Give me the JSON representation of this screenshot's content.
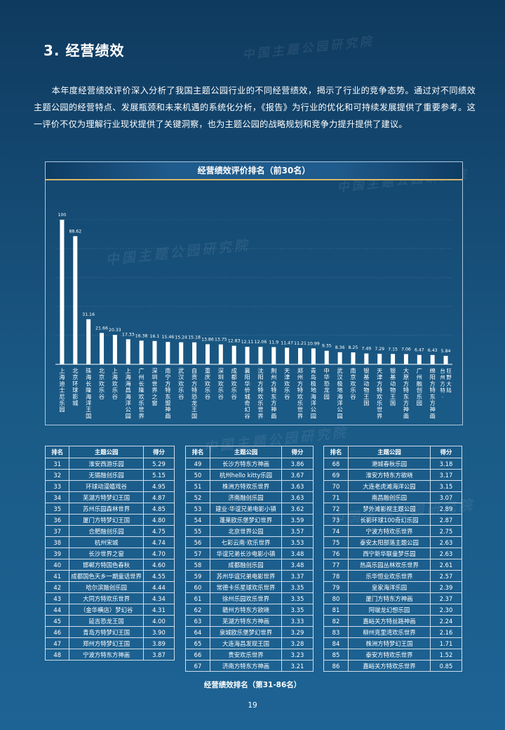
{
  "section": {
    "title": "3. 经营绩效"
  },
  "intro": "本年度经营绩效评价深入分析了我国主题公园行业的不同经营绩效，揭示了行业的竞争态势。通过对不同绩效主题公园的经营特点、发展瓶颈和未来机遇的系统化分析，《报告》为行业的优化和可持续发展提供了重要参考。这一评价不仅为理解行业现状提供了关键洞察，也为主题公园的战略规划和竞争力提升提供了建议。",
  "watermark": "中国主题公园研究院",
  "chart_data": {
    "type": "bar",
    "title": "经营绩效评价排名（前30名）",
    "categories": [
      "上海迪士尼乐园",
      "北京环球影城",
      "珠海长隆海洋王国",
      "北京欢乐谷",
      "上海欢乐谷",
      "上海海昌海洋公园",
      "广州长隆欢乐世界",
      "深圳世界之窗",
      "南宁方特东盟神画",
      "武汉欢乐谷",
      "自贡方特恐龙王国",
      "重庆欢乐谷",
      "深圳欢乐谷",
      "成都欢乐谷",
      "襄阳华侨城奇幻谷",
      "沈阳方特欢乐世界",
      "荆州方特东方神画",
      "天津欢乐谷",
      "郑州方特欢乐世界",
      "青岛极地海洋公园",
      "中华恐龙园",
      "武汉极地海洋公园",
      "南京欢乐谷",
      "银基动物王国",
      "天津方特欢乐世界",
      "银基动物王国",
      "大原方特东方神画",
      "广州融创乐园",
      "绵阳方特东方神画",
      "台州方特·狂野大陆"
    ],
    "values": [
      100,
      88.62,
      31.16,
      21.66,
      20.33,
      17.33,
      16.38,
      16.1,
      15.46,
      15.24,
      15.18,
      13.86,
      13.75,
      12.83,
      12.11,
      12.06,
      11.9,
      11.47,
      11.21,
      10.99,
      9.35,
      8.36,
      8.25,
      7.49,
      7.29,
      7.15,
      7.06,
      6.47,
      6.43,
      5.84
    ],
    "value_labels": [
      "100",
      "88.62",
      "31.16",
      "21.66",
      "20.33",
      "17.33",
      "16.38",
      "16.1",
      "15.46",
      "15.24",
      "15.18",
      "13.86",
      "13.75",
      "12.83",
      "12.11",
      "12.06",
      "11.9",
      "11.47",
      "11.21",
      "10.99",
      "9.35",
      "8.36",
      "8.25",
      "7.49",
      "7.29",
      "7.15",
      "7.06",
      "6.47",
      "6.43",
      "5.84"
    ],
    "ylim": [
      0,
      100
    ],
    "grid": true,
    "legend": "none"
  },
  "tables": {
    "headers": {
      "rank": "排名",
      "park": "主题公园",
      "score": "得分"
    },
    "caption": "经营绩效排名（第31-86名）",
    "columns": [
      [
        {
          "rank": "31",
          "park": "淮安西游乐园",
          "score": "5.29"
        },
        {
          "rank": "32",
          "park": "无锡融创乐园",
          "score": "5.15"
        },
        {
          "rank": "33",
          "park": "环球动漫嬉戏谷",
          "score": "4.95"
        },
        {
          "rank": "34",
          "park": "芜湖方特梦幻王国",
          "score": "4.87"
        },
        {
          "rank": "35",
          "park": "苏州乐园森林世界",
          "score": "4.85"
        },
        {
          "rank": "36",
          "park": "厦门方特梦幻王国",
          "score": "4.80"
        },
        {
          "rank": "37",
          "park": "合肥融创乐园",
          "score": "4.75"
        },
        {
          "rank": "38",
          "park": "杭州宋城",
          "score": "4.74"
        },
        {
          "rank": "39",
          "park": "长沙世界之窗",
          "score": "4.70"
        },
        {
          "rank": "40",
          "park": "邯郸方特国色春秋",
          "score": "4.60"
        },
        {
          "rank": "41",
          "park": "成都国色天乡一期童话世界",
          "score": "4.55"
        },
        {
          "rank": "42",
          "park": "哈尔滨融创乐园",
          "score": "4.44"
        },
        {
          "rank": "43",
          "park": "大同方特欢乐世界",
          "score": "4.34"
        },
        {
          "rank": "44",
          "park": "（金华横店）梦幻谷",
          "score": "4.31"
        },
        {
          "rank": "45",
          "park": "延吉恐龙王国",
          "score": "4.00"
        },
        {
          "rank": "46",
          "park": "青岛方特梦幻王国",
          "score": "3.90"
        },
        {
          "rank": "47",
          "park": "郑州方特梦幻王国",
          "score": "3.89"
        },
        {
          "rank": "48",
          "park": "宁波方特东方神画",
          "score": "3.87"
        }
      ],
      [
        {
          "rank": "49",
          "park": "长沙方特东方神画",
          "score": "3.86"
        },
        {
          "rank": "50",
          "park": "杭州hello kitty乐园",
          "score": "3.67"
        },
        {
          "rank": "51",
          "park": "株洲方特欢乐世界",
          "score": "3.63"
        },
        {
          "rank": "52",
          "park": "济南融创乐园",
          "score": "3.63"
        },
        {
          "rank": "53",
          "park": "建业·华谊兄弟电影小镇",
          "score": "3.62"
        },
        {
          "rank": "54",
          "park": "蓬莱欧乐堡梦幻世界",
          "score": "3.59"
        },
        {
          "rank": "55",
          "park": "北京世界公园",
          "score": "3.57"
        },
        {
          "rank": "56",
          "park": "七彩云南·欢乐世界",
          "score": "3.53"
        },
        {
          "rank": "57",
          "park": "华谊兄弟长沙电影小镇",
          "score": "3.48"
        },
        {
          "rank": "58",
          "park": "成都融创乐园",
          "score": "3.48"
        },
        {
          "rank": "59",
          "park": "苏州华谊兄弟电影世界",
          "score": "3.37"
        },
        {
          "rank": "60",
          "park": "常德卡乐星球欢乐世界",
          "score": "3.35"
        },
        {
          "rank": "61",
          "park": "徐州乐园欢乐世界",
          "score": "3.35"
        },
        {
          "rank": "62",
          "park": "赣州方特东方欲晓",
          "score": "3.35"
        },
        {
          "rank": "63",
          "park": "芜湖方特东方神画",
          "score": "3.33"
        },
        {
          "rank": "64",
          "park": "泉城欧乐堡梦幻世界",
          "score": "3.29"
        },
        {
          "rank": "65",
          "park": "大连海昌发现王国",
          "score": "3.28"
        },
        {
          "rank": "66",
          "park": "贵安欢乐世界",
          "score": "3.23"
        },
        {
          "rank": "67",
          "park": "济南方特东方神画",
          "score": "3.21"
        }
      ],
      [
        {
          "rank": "68",
          "park": "滟城春秋乐园",
          "score": "3.18"
        },
        {
          "rank": "69",
          "park": "淮安方特东方欲晓",
          "score": "3.17"
        },
        {
          "rank": "70",
          "park": "大连老虎滩海洋公园",
          "score": "3.15"
        },
        {
          "rank": "71",
          "park": "南昌融创乐园",
          "score": "3.07"
        },
        {
          "rank": "72",
          "park": "梦外滩影视主题公园",
          "score": "2.89"
        },
        {
          "rank": "73",
          "park": "长影环球100奇幻乐园",
          "score": "2.87"
        },
        {
          "rank": "74",
          "park": "宁波方特欢乐世界",
          "score": "2.75"
        },
        {
          "rank": "75",
          "park": "泰安太阳部落主题公园",
          "score": "2.63"
        },
        {
          "rank": "76",
          "park": "西宁新华联童梦乐园",
          "score": "2.63"
        },
        {
          "rank": "77",
          "park": "热高乐园丛林欢乐世界",
          "score": "2.61"
        },
        {
          "rank": "78",
          "park": "乐华恒业欢乐世界",
          "score": "2.57"
        },
        {
          "rank": "79",
          "park": "皇家海洋乐园",
          "score": "2.39"
        },
        {
          "rank": "80",
          "park": "厦门方特东方神画",
          "score": "2.37"
        },
        {
          "rank": "81",
          "park": "阿啵龙幻想乐园",
          "score": "2.30"
        },
        {
          "rank": "82",
          "park": "嘉峪关方特丝路神画",
          "score": "2.24"
        },
        {
          "rank": "83",
          "park": "柳州克里湾欢乐世界",
          "score": "2.16"
        },
        {
          "rank": "84",
          "park": "株洲方特梦幻王国",
          "score": "1.71"
        },
        {
          "rank": "85",
          "park": "泰安方特欢乐世界",
          "score": "1.52"
        },
        {
          "rank": "86",
          "park": "嘉峪关方特欢乐世界",
          "score": "0.85"
        }
      ]
    ]
  },
  "page": {
    "number": "19"
  }
}
